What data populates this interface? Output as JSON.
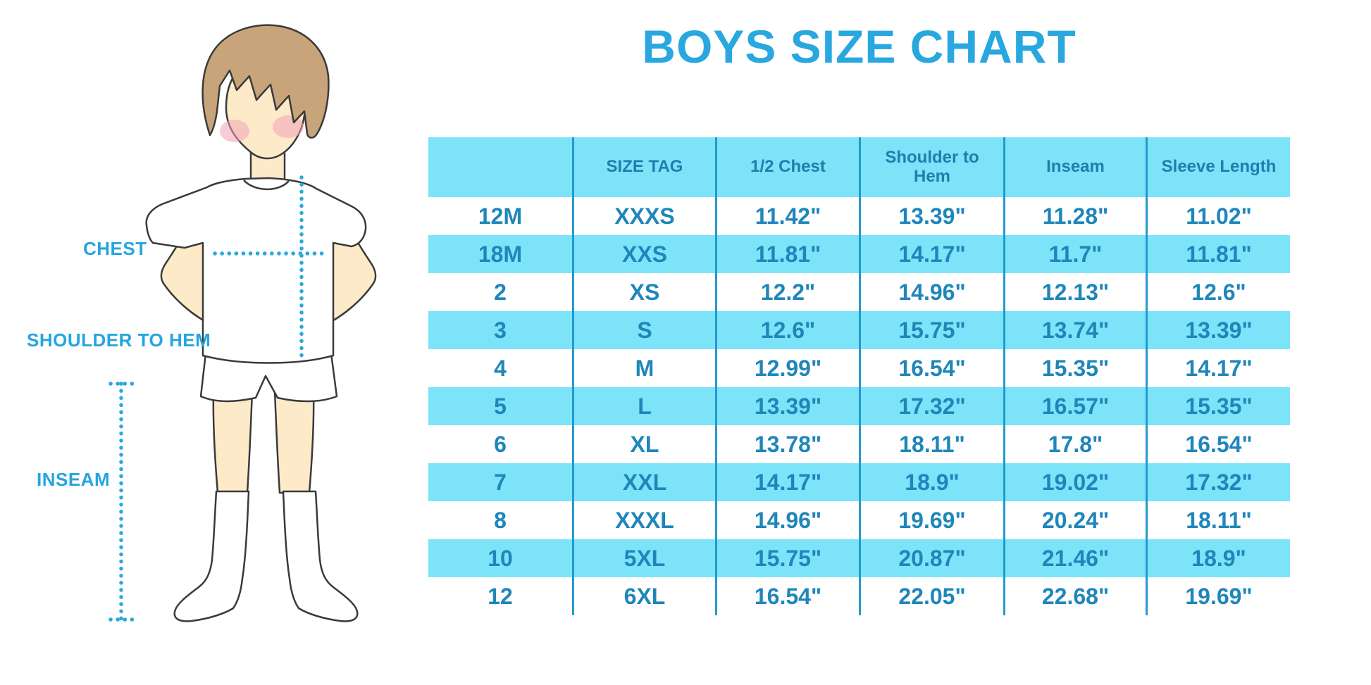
{
  "page_title": "BOYS SIZE CHART",
  "diagram_labels": {
    "chest": "CHEST",
    "shoulder_to_hem": "SHOULDER TO HEM",
    "inseam": "INSEAM"
  },
  "palette": {
    "title_blue": "#29a8e0",
    "label_blue": "#25a5e0",
    "row_band_cyan": "#7ce3f9",
    "table_text_blue": "#1f86ba",
    "header_text_blue": "#1e7fad",
    "grid_line_blue": "#229bcd",
    "dotted_line_blue": "#29a8e0",
    "hair_brown": "#c8a47b",
    "skin": "#fdeac9",
    "blush_pink": "#f3a3b5",
    "outline": "#3a3a3a"
  },
  "chart_data": {
    "type": "table",
    "title": "BOYS SIZE CHART",
    "units": "inches",
    "columns": [
      "",
      "SIZE TAG",
      "1/2 Chest",
      "Shoulder to Hem",
      "Inseam",
      "Sleeve Length"
    ],
    "rows": [
      [
        "12M",
        "XXXS",
        "11.42\"",
        "13.39\"",
        "11.28\"",
        "11.02\""
      ],
      [
        "18M",
        "XXS",
        "11.81\"",
        "14.17\"",
        "11.7\"",
        "11.81\""
      ],
      [
        "2",
        "XS",
        "12.2\"",
        "14.96\"",
        "12.13\"",
        "12.6\""
      ],
      [
        "3",
        "S",
        "12.6\"",
        "15.75\"",
        "13.74\"",
        "13.39\""
      ],
      [
        "4",
        "M",
        "12.99\"",
        "16.54\"",
        "15.35\"",
        "14.17\""
      ],
      [
        "5",
        "L",
        "13.39\"",
        "17.32\"",
        "16.57\"",
        "15.35\""
      ],
      [
        "6",
        "XL",
        "13.78\"",
        "18.11\"",
        "17.8\"",
        "16.54\""
      ],
      [
        "7",
        "XXL",
        "14.17\"",
        "18.9\"",
        "19.02\"",
        "17.32\""
      ],
      [
        "8",
        "XXXL",
        "14.96\"",
        "19.69\"",
        "20.24\"",
        "18.11\""
      ],
      [
        "10",
        "5XL",
        "15.75\"",
        "20.87\"",
        "21.46\"",
        "18.9\""
      ],
      [
        "12",
        "6XL",
        "16.54\"",
        "22.05\"",
        "22.68\"",
        "19.69\""
      ]
    ],
    "layout_hints": {
      "header_background": "cyan band",
      "row_banding": "white / cyan alternating starting with white",
      "column_separators": "vertical blue lines, no horizontal lines, no outer border"
    }
  }
}
